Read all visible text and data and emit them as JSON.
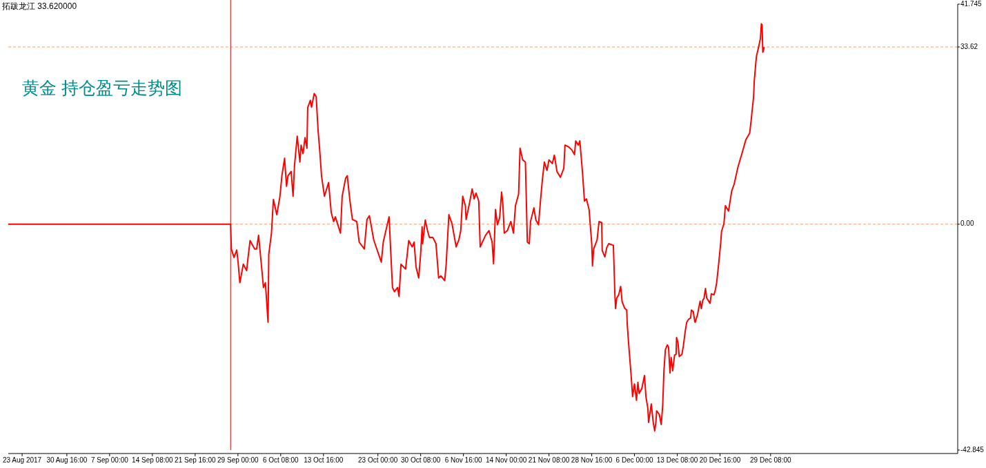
{
  "chart_data": {
    "type": "line",
    "title": "黄金 持仓盈亏走势图",
    "annotations": [
      "拓跋龙江 33.620000"
    ],
    "x": [
      "2017-08-20T15:00",
      "2017-09-27T18:00",
      "2017-09-27T21:00",
      "2017-09-28T08:00",
      "2017-09-28T19:00",
      "2017-09-29T00:00",
      "2017-09-29T08:00",
      "2017-09-29T22:00",
      "2017-09-30T12:00",
      "2017-09-30T17:00",
      "2017-10-01T02:00",
      "2017-10-01T21:00",
      "2017-10-02T05:00",
      "2017-10-02T13:00",
      "2017-10-03T03:00",
      "2017-10-03T09:00",
      "2017-10-03T17:00",
      "2017-10-04T04:00",
      "2017-10-04T07:00",
      "2017-10-04T18:00",
      "2017-10-05T02:00",
      "2017-10-05T16:00",
      "2017-10-06T05:00",
      "2017-10-06T13:00",
      "2017-10-07T00:00",
      "2017-10-07T08:00",
      "2017-10-07T14:00",
      "2017-10-08T03:00",
      "2017-10-08T11:00",
      "2017-10-08T17:00",
      "2017-10-09T04:00",
      "2017-10-09T15:00",
      "2017-10-09T20:00",
      "2017-10-10T04:00",
      "2017-10-10T12:00",
      "2017-10-10T20:00",
      "2017-10-10T23:00",
      "2017-10-11T10:00",
      "2017-10-11T15:00",
      "2017-10-12T02:00",
      "2017-10-12T10:00",
      "2017-10-12T18:00",
      "2017-10-13T00:00",
      "2017-10-13T08:00",
      "2017-10-13T20:00",
      "2017-10-14T13:00",
      "2017-10-15T00:00",
      "2017-10-15T10:00",
      "2017-10-15T17:00",
      "2017-10-16T14:00",
      "2017-10-16T21:00",
      "2017-10-17T11:00",
      "2017-10-17T18:00",
      "2017-10-18T05:00",
      "2017-10-18T15:00",
      "2017-10-19T09:00",
      "2017-10-19T19:00",
      "2017-10-20T16:00",
      "2017-10-21T03:00",
      "2017-10-21T13:00",
      "2017-10-22T07:00",
      "2017-10-23T14:00",
      "2017-10-23T22:00",
      "2017-10-24T22:00",
      "2017-10-25T12:00",
      "2017-10-25T20:00",
      "2017-10-26T09:00",
      "2017-10-26T15:00",
      "2017-10-26T23:00",
      "2017-10-27T18:00",
      "2017-10-28T07:00",
      "2017-10-28T21:00",
      "2017-10-29T05:00",
      "2017-10-29T13:00",
      "2017-10-30T00:00",
      "2017-10-30T08:00",
      "2017-10-30T14:00",
      "2017-10-30T16:00",
      "2017-10-31T03:00",
      "2017-10-31T12:00",
      "2017-10-31T20:00",
      "2017-11-01T10:00",
      "2017-11-01T23:00",
      "2017-11-02T10:00",
      "2017-11-02T19:00",
      "2017-11-03T11:00",
      "2017-11-03T17:00",
      "2017-11-04T04:00",
      "2017-11-04T17:00",
      "2017-11-05T10:00",
      "2017-11-05T21:00",
      "2017-11-06T05:00",
      "2017-11-06T13:00",
      "2017-11-07T00:00",
      "2017-11-07T03:00",
      "2017-11-07T17:00",
      "2017-11-08T04:00",
      "2017-11-08T12:00",
      "2017-11-08T20:00",
      "2017-11-09T07:00",
      "2017-11-09T10:00",
      "2017-11-09T13:00",
      "2017-11-10T11:00",
      "2017-11-11T01:00",
      "2017-11-11T14:00",
      "2017-11-11T20:00",
      "2017-11-12T04:00",
      "2017-11-12T12:00",
      "2017-11-12T21:00",
      "2017-11-13T05:00",
      "2017-11-13T10:00",
      "2017-11-13T16:00",
      "2017-11-14T05:00",
      "2017-11-14T19:00",
      "2017-11-15T06:00",
      "2017-11-15T14:00",
      "2017-11-16T03:00",
      "2017-11-16T09:00",
      "2017-11-16T20:00",
      "2017-11-17T07:00",
      "2017-11-17T15:00",
      "2017-11-17T23:00",
      "2017-11-18T04:00",
      "2017-11-18T18:00",
      "2017-11-19T02:00",
      "2017-11-19T13:00",
      "2017-11-19T21:00",
      "2017-11-20T05:00",
      "2017-11-20T13:00",
      "2017-11-21T00:00",
      "2017-11-21T08:00",
      "2017-11-21T22:00",
      "2017-11-22T06:00",
      "2017-11-22T17:00",
      "2017-11-23T07:00",
      "2017-11-23T21:00",
      "2017-11-24T02:00",
      "2017-11-24T16:00",
      "2017-11-25T06:00",
      "2017-11-25T17:00",
      "2017-11-25T22:00",
      "2017-11-26T09:00",
      "2017-11-26T15:00",
      "2017-11-27T02:00",
      "2017-11-27T10:00",
      "2017-11-27T18:00",
      "2017-11-28T05:00",
      "2017-11-28T16:00",
      "2017-11-28T19:00",
      "2017-11-29T00:00",
      "2017-11-29T14:00",
      "2017-11-29T22:00",
      "2017-11-30T09:00",
      "2017-11-30T11:00",
      "2017-11-30T22:00",
      "2017-12-01T06:00",
      "2017-12-01T14:00",
      "2017-12-02T09:00",
      "2017-12-02T12:00",
      "2017-12-02T15:00",
      "2017-12-02T18:00",
      "2017-12-02T23:00",
      "2017-12-03T07:00",
      "2017-12-03T15:00",
      "2017-12-03T21:00",
      "2017-12-04T07:00",
      "2017-12-04T16:00",
      "2017-12-04T18:00",
      "2017-12-05T00:00",
      "2017-12-05T05:00",
      "2017-12-05T10:00",
      "2017-12-05T16:00",
      "2017-12-06T00:00",
      "2017-12-06T08:00",
      "2017-12-06T14:00",
      "2017-12-06T19:00",
      "2017-12-07T06:00",
      "2017-12-07T17:00",
      "2017-12-07T23:00",
      "2017-12-08T07:00",
      "2017-12-08T10:00",
      "2017-12-08T21:00",
      "2017-12-09T05:00",
      "2017-12-09T11:00",
      "2017-12-09T16:00",
      "2017-12-09T19:00",
      "2017-12-10T06:00",
      "2017-12-10T14:00",
      "2017-12-10T20:00",
      "2017-12-11T01:00",
      "2017-12-11T07:00",
      "2017-12-11T15:00",
      "2017-12-11T20:00",
      "2017-12-12T02:00",
      "2017-12-12T07:00",
      "2017-12-12T13:00",
      "2017-12-12T21:00",
      "2017-12-13T03:00",
      "2017-12-13T05:00",
      "2017-12-13T11:00",
      "2017-12-13T16:00",
      "2017-12-14T03:00",
      "2017-12-14T09:00",
      "2017-12-14T17:00",
      "2017-12-14T23:00",
      "2017-12-15T07:00",
      "2017-12-15T15:00",
      "2017-12-15T18:00",
      "2017-12-16T02:00",
      "2017-12-16T08:00",
      "2017-12-16T10:00",
      "2017-12-16T19:00",
      "2017-12-17T00:00",
      "2017-12-17T06:00",
      "2017-12-17T11:00",
      "2017-12-17T17:00",
      "2017-12-17T22:00",
      "2017-12-18T04:00",
      "2017-12-18T09:00",
      "2017-12-18T23:00",
      "2017-12-19T04:00",
      "2017-12-19T15:00",
      "2017-12-19T21:00",
      "2017-12-20T02:00",
      "2017-12-20T11:00",
      "2017-12-20T19:00",
      "2017-12-20T22:00",
      "2017-12-21T08:00",
      "2017-12-21T14:00",
      "2017-12-22T03:00",
      "2017-12-22T16:00",
      "2017-12-23T02:00",
      "2017-12-23T18:00",
      "2017-12-24T10:00",
      "2017-12-25T02:00",
      "2017-12-25T18:00",
      "2017-12-26T00:00",
      "2017-12-26T10:00",
      "2017-12-26T13:00",
      "2017-12-26T19:00",
      "2017-12-26T22:00",
      "2017-12-27T08:00",
      "2017-12-27T14:00",
      "2017-12-27T18:00",
      "2017-12-27T21:00",
      "2017-12-28T00:00",
      "2017-12-28T06:00"
    ],
    "series": [
      {
        "color": "#ff0000",
        "values": [
          0,
          0,
          -4.7,
          -6.3,
          -4.9,
          -6.9,
          -11.1,
          -7.6,
          -8.8,
          -6.6,
          -3.1,
          -4.7,
          -4.7,
          -2.1,
          -8.9,
          -12.0,
          -11.1,
          -18.6,
          -5.7,
          -1.7,
          4.7,
          1.8,
          5.3,
          9.2,
          12.5,
          7.2,
          9.2,
          10.0,
          5.3,
          11.2,
          16.7,
          11.8,
          15.0,
          13.4,
          16.4,
          14.4,
          22.1,
          23.5,
          22.2,
          24.8,
          24.2,
          17.7,
          14.4,
          9.2,
          5.3,
          7.9,
          2.2,
          0.5,
          1.4,
          -1.7,
          5.3,
          8.7,
          9.2,
          4.4,
          0.9,
          0.5,
          -3.4,
          -4.7,
          0.9,
          1.6,
          -3.0,
          -7.2,
          -3.4,
          1.4,
          -12.0,
          -12.8,
          -12.0,
          -13.7,
          -7.6,
          -8.5,
          -3.1,
          -4.3,
          -3.4,
          -8.1,
          -10.2,
          -5.6,
          -0.5,
          -3.7,
          0.8,
          -1.2,
          -2.5,
          -2.5,
          -3.7,
          -10.2,
          -9.8,
          -10.7,
          -7.6,
          1.8,
          0.1,
          -4.3,
          -3.0,
          -1.2,
          5.3,
          3.5,
          0.9,
          4.0,
          6.7,
          4.8,
          5.9,
          4.4,
          0.1,
          -4.3,
          -2.1,
          -1.2,
          -3.4,
          -7.5,
          2.8,
          -0.1,
          1.2,
          6.1,
          4.0,
          -1.7,
          -1.2,
          0.5,
          -1.7,
          3.5,
          5.7,
          14.4,
          12.2,
          11.8,
          -3.4,
          -3.7,
          0.5,
          3.1,
          0.8,
          -0.1,
          4.4,
          8.5,
          11.8,
          10.2,
          12.2,
          11.5,
          13.1,
          10.0,
          8.9,
          10.6,
          15.0,
          14.7,
          14.1,
          13.2,
          15.8,
          15.0,
          15.8,
          9.8,
          4.4,
          4.8,
          2.8,
          -3.7,
          -7.9,
          -4.7,
          -3.0,
          0.5,
          0.3,
          -5.0,
          -6.2,
          -4.4,
          -3.7,
          -4.0,
          -8.3,
          -13.1,
          -16.0,
          -14.0,
          -13.4,
          -11.8,
          -14.7,
          -15.9,
          -16.3,
          -18.9,
          -22.8,
          -25.7,
          -28.6,
          -32.7,
          -30.3,
          -33.4,
          -30.0,
          -32.1,
          -31.2,
          -28.7,
          -32.7,
          -35.0,
          -37.6,
          -34.1,
          -37.6,
          -39.2,
          -37.6,
          -35.4,
          -36.1,
          -38.0,
          -34.4,
          -27.9,
          -23.8,
          -22.9,
          -23.3,
          -28.2,
          -25.3,
          -27.8,
          -24.8,
          -24.7,
          -21.5,
          -22.5,
          -25.1,
          -24.7,
          -23.1,
          -20.2,
          -18.6,
          -18.0,
          -17.8,
          -16.3,
          -16.6,
          -18.5,
          -18.6,
          -17.2,
          -16.0,
          -14.6,
          -16.0,
          -14.4,
          -14.1,
          -12.2,
          -14.0,
          -15.0,
          -13.2,
          -13.4,
          -12.4,
          -11.1,
          -7.2,
          -3.4,
          -1.4,
          0.1,
          3.5,
          2.5,
          6.3,
          7.6,
          10.9,
          13.4,
          16.0,
          17.3,
          19.7,
          24.2,
          27.3,
          30.5,
          31.9,
          33.9,
          35.2,
          38.0,
          37.8,
          32.6,
          33.6
        ]
      }
    ],
    "xlim": [
      "2017-08-20T15:00",
      "2018-01-30T10:00"
    ],
    "ylim": [
      -42.845,
      41.745
    ],
    "xticks": [
      {
        "value": "2017-08-23T00:00",
        "label": "23 Aug 2017"
      },
      {
        "value": "2017-08-30T16:00",
        "label": "30 Aug 16:00"
      },
      {
        "value": "2017-09-07T00:00",
        "label": "7 Sep 00:00"
      },
      {
        "value": "2017-09-14T08:00",
        "label": "14 Sep 08:00"
      },
      {
        "value": "2017-09-21T16:00",
        "label": "21 Sep 16:00"
      },
      {
        "value": "2017-09-29T00:00",
        "label": "29 Sep 00:00"
      },
      {
        "value": "2017-10-06T08:00",
        "label": "6 Oct 08:00"
      },
      {
        "value": "2017-10-13T16:00",
        "label": "13 Oct 16:00"
      },
      {
        "value": "2017-10-23T00:00",
        "label": "23 Oct 00:00"
      },
      {
        "value": "2017-10-30T08:00",
        "label": "30 Oct 08:00"
      },
      {
        "value": "2017-11-06T16:00",
        "label": "6 Nov 16:00"
      },
      {
        "value": "2017-11-14T00:00",
        "label": "14 Nov 00:00"
      },
      {
        "value": "2017-11-21T08:00",
        "label": "21 Nov 08:00"
      },
      {
        "value": "2017-11-28T16:00",
        "label": "28 Nov 16:00"
      },
      {
        "value": "2017-12-06T00:00",
        "label": "6 Dec 00:00"
      },
      {
        "value": "2017-12-13T08:00",
        "label": "13 Dec 08:00"
      },
      {
        "value": "2017-12-20T16:00",
        "label": "20 Dec 16:00"
      },
      {
        "value": "2017-12-29T08:00",
        "label": "29 Dec 08:00"
      }
    ],
    "yticks": [
      41.745,
      33.62,
      {
        "value": 0,
        "label": "0.00"
      },
      -42.845
    ],
    "ref_lines": [
      {
        "axis": "y",
        "value": 33.62,
        "color": "#ff9966",
        "line_style": "dashed"
      },
      {
        "axis": "y",
        "value": 0,
        "color": "#ff9966",
        "line_style": "dashed"
      },
      {
        "axis": "x",
        "value": "2017-09-27T18:00",
        "color": "#dd0000",
        "line_style": "solid"
      }
    ]
  }
}
